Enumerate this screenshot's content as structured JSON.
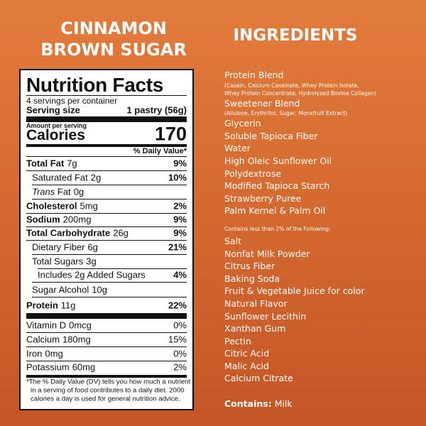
{
  "product_title": [
    "CINNAMON",
    "BROWN SUGAR"
  ],
  "nutrition": {
    "title": "Nutrition Facts",
    "servings": "4 servings per container",
    "serving_size_label": "Serving size",
    "serving_size": "1 pastry (56g)",
    "amount_per_serving": "Amount per serving",
    "calories_label": "Calories",
    "calories": "170",
    "dv_header": "% Daily Value*",
    "rows": [
      {
        "name": "Total Fat",
        "amount": "7g",
        "dv": "9%"
      },
      {
        "name": "Saturated Fat",
        "amount": "2g",
        "dv": "10%"
      },
      {
        "name_italic": "Trans",
        "name": "Fat",
        "amount": "0g"
      },
      {
        "name": "Cholesterol",
        "amount": "5mg",
        "dv": "2%"
      },
      {
        "name": "Sodium",
        "amount": "200mg",
        "dv": "9%"
      },
      {
        "name": "Total Carbohydrate",
        "amount": "26g",
        "dv": "9%"
      },
      {
        "name": "Dietary Fiber",
        "amount": "6g",
        "dv": "21%"
      },
      {
        "name": "Total Sugars",
        "amount": "3g"
      },
      {
        "name": "Includes 2g Added Sugars",
        "dv": "4%"
      },
      {
        "name": "Sugar Alcohol",
        "amount": "10g"
      },
      {
        "name": "Protein",
        "amount": "11g",
        "dv": "22%"
      },
      {
        "name": "Vitamin D",
        "amount": "0mcg",
        "dv": "0%"
      },
      {
        "name": "Calcium",
        "amount": "180mg",
        "dv": "15%"
      },
      {
        "name": "Iron",
        "amount": "0mg",
        "dv": "0%"
      },
      {
        "name": "Potassium",
        "amount": "60mg",
        "dv": "2%"
      }
    ],
    "footnote": [
      "*The % Daily Value (DV) tells you how much a nutrient",
      "in a serving of food contributes to a daily diet. 2000",
      "calories a day is used for general nutrition advice."
    ]
  },
  "ingredients": {
    "title": "INGREDIENTS",
    "primary": [
      {
        "name": "Protein Blend",
        "note": [
          "(Casein, Calcium Caseinate, Whey Protein Isolate,",
          "Whey Protein Concentrate, Hydrolyzed Bovine Collagen)"
        ]
      },
      {
        "name": "Sweetener Blend",
        "note": [
          "(Allulose, Erythritol, Sugar, Monkfruit Extract)"
        ]
      },
      {
        "name": "Glycerin"
      },
      {
        "name": "Soluble Tapioca Fiber"
      },
      {
        "name": "Water"
      },
      {
        "name": "High Oleic Sunflower Oil"
      },
      {
        "name": "Polydextrose"
      },
      {
        "name": "Modified Tapioca Starch"
      },
      {
        "name": "Strawberry Puree"
      },
      {
        "name": "Palm Kernel & Palm Oil"
      }
    ],
    "minor_heading": "Contains less than 2% of the Following:",
    "minor": [
      "Salt",
      "Nonfat Milk Powder",
      "Citrus Fiber",
      "Baking Soda",
      "Fruit & Vegetable Juice for color",
      "Natural Flavor",
      "Sunflower Lecithin",
      "Xanthan Gum",
      "Pectin",
      "Citric Acid",
      "Malic Acid",
      "Calcium Citrate"
    ],
    "contains_label": "Contains:",
    "contains": "Milk"
  }
}
